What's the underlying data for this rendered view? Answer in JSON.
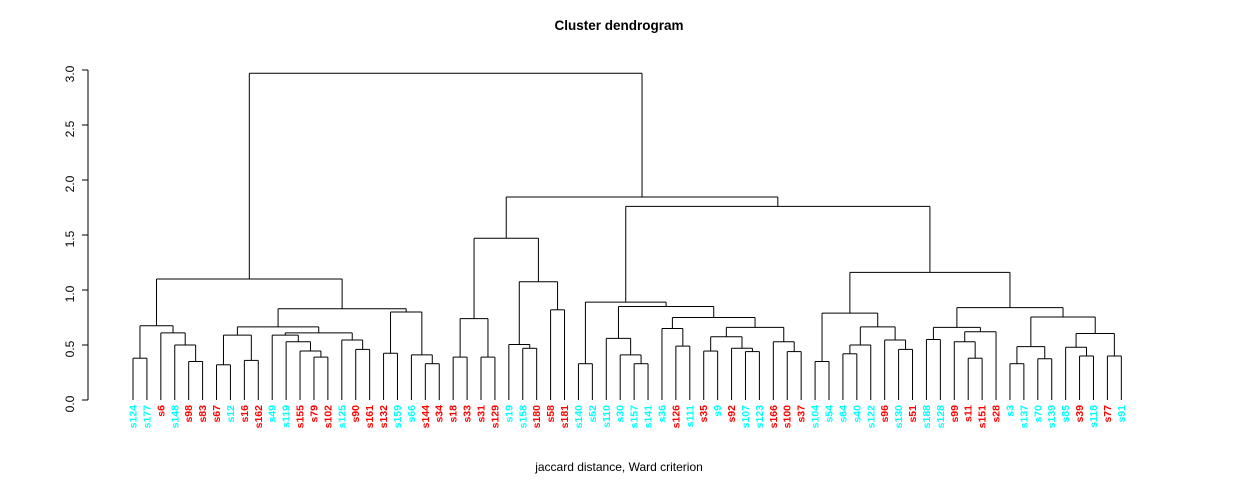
{
  "title": "Cluster dendrogram",
  "caption": "jaccard distance, Ward criterion",
  "chart_data": {
    "type": "dendrogram",
    "orientation": "vertical",
    "ylabel_ticks": [
      "0.0",
      "0.5",
      "1.0",
      "1.5",
      "2.0",
      "2.5",
      "3.0"
    ],
    "ylim": [
      0.0,
      3.0
    ],
    "root_height": 2.97,
    "colors": {
      "cyan": "#00ffff",
      "red": "#ff0000",
      "line": "#000000"
    },
    "leaves": [
      {
        "label": "s124",
        "color": "cyan"
      },
      {
        "label": "s177",
        "color": "cyan"
      },
      {
        "label": "s6",
        "color": "red"
      },
      {
        "label": "s148",
        "color": "cyan"
      },
      {
        "label": "s98",
        "color": "red"
      },
      {
        "label": "s83",
        "color": "red"
      },
      {
        "label": "s67",
        "color": "red"
      },
      {
        "label": "s12",
        "color": "cyan"
      },
      {
        "label": "s16",
        "color": "red"
      },
      {
        "label": "s162",
        "color": "red"
      },
      {
        "label": "s49",
        "color": "cyan"
      },
      {
        "label": "s119",
        "color": "cyan"
      },
      {
        "label": "s155",
        "color": "red"
      },
      {
        "label": "s79",
        "color": "red"
      },
      {
        "label": "s102",
        "color": "red"
      },
      {
        "label": "s125",
        "color": "cyan"
      },
      {
        "label": "s90",
        "color": "red"
      },
      {
        "label": "s161",
        "color": "red"
      },
      {
        "label": "s132",
        "color": "red"
      },
      {
        "label": "s159",
        "color": "cyan"
      },
      {
        "label": "s66",
        "color": "cyan"
      },
      {
        "label": "s144",
        "color": "red"
      },
      {
        "label": "s34",
        "color": "red"
      },
      {
        "label": "s18",
        "color": "red"
      },
      {
        "label": "s33",
        "color": "red"
      },
      {
        "label": "s31",
        "color": "red"
      },
      {
        "label": "s129",
        "color": "red"
      },
      {
        "label": "s19",
        "color": "cyan"
      },
      {
        "label": "s158",
        "color": "cyan"
      },
      {
        "label": "s180",
        "color": "red"
      },
      {
        "label": "s58",
        "color": "red"
      },
      {
        "label": "s181",
        "color": "red"
      },
      {
        "label": "s140",
        "color": "cyan"
      },
      {
        "label": "s52",
        "color": "cyan"
      },
      {
        "label": "s110",
        "color": "cyan"
      },
      {
        "label": "s30",
        "color": "cyan"
      },
      {
        "label": "s157",
        "color": "cyan"
      },
      {
        "label": "s141",
        "color": "cyan"
      },
      {
        "label": "s36",
        "color": "cyan"
      },
      {
        "label": "s126",
        "color": "red"
      },
      {
        "label": "s111",
        "color": "cyan"
      },
      {
        "label": "s35",
        "color": "red"
      },
      {
        "label": "s9",
        "color": "cyan"
      },
      {
        "label": "s92",
        "color": "red"
      },
      {
        "label": "s107",
        "color": "cyan"
      },
      {
        "label": "s123",
        "color": "cyan"
      },
      {
        "label": "s166",
        "color": "red"
      },
      {
        "label": "s100",
        "color": "red"
      },
      {
        "label": "s37",
        "color": "red"
      },
      {
        "label": "s104",
        "color": "cyan"
      },
      {
        "label": "s54",
        "color": "cyan"
      },
      {
        "label": "s64",
        "color": "cyan"
      },
      {
        "label": "s40",
        "color": "cyan"
      },
      {
        "label": "s122",
        "color": "cyan"
      },
      {
        "label": "s96",
        "color": "red"
      },
      {
        "label": "s130",
        "color": "cyan"
      },
      {
        "label": "s51",
        "color": "red"
      },
      {
        "label": "s188",
        "color": "cyan"
      },
      {
        "label": "s128",
        "color": "cyan"
      },
      {
        "label": "s99",
        "color": "red"
      },
      {
        "label": "s11",
        "color": "red"
      },
      {
        "label": "s151",
        "color": "red"
      },
      {
        "label": "s28",
        "color": "red"
      },
      {
        "label": "s3",
        "color": "cyan"
      },
      {
        "label": "s137",
        "color": "cyan"
      },
      {
        "label": "s70",
        "color": "cyan"
      },
      {
        "label": "s139",
        "color": "cyan"
      },
      {
        "label": "s85",
        "color": "cyan"
      },
      {
        "label": "s39",
        "color": "red"
      },
      {
        "label": "s118",
        "color": "cyan"
      },
      {
        "label": "s77",
        "color": "red"
      },
      {
        "label": "s91",
        "color": "cyan"
      }
    ],
    "tree": {
      "h": 2.97,
      "c": [
        {
          "h": 1.1,
          "c": [
            {
              "h": 0.675,
              "c": [
                {
                  "h": 0.38,
                  "c": [
                    "s124",
                    "s177"
                  ]
                },
                {
                  "h": 0.61,
                  "c": [
                    "s6",
                    {
                      "h": 0.5,
                      "c": [
                        "s148",
                        {
                          "h": 0.35,
                          "c": [
                            "s98",
                            "s83"
                          ]
                        }
                      ]
                    }
                  ]
                }
              ]
            },
            {
              "h": 0.83,
              "c": [
                {
                  "h": 0.665,
                  "c": [
                    {
                      "h": 0.59,
                      "c": [
                        {
                          "h": 0.32,
                          "c": [
                            "s67",
                            "s12"
                          ]
                        },
                        {
                          "h": 0.36,
                          "c": [
                            "s16",
                            "s162"
                          ]
                        }
                      ]
                    },
                    {
                      "h": 0.61,
                      "c": [
                        {
                          "h": 0.59,
                          "c": [
                            "s49",
                            {
                              "h": 0.53,
                              "c": [
                                "s119",
                                {
                                  "h": 0.445,
                                  "c": [
                                    "s155",
                                    {
                                      "h": 0.39,
                                      "c": [
                                        "s79",
                                        "s102"
                                      ]
                                    }
                                  ]
                                }
                              ]
                            }
                          ]
                        },
                        {
                          "h": 0.545,
                          "c": [
                            "s125",
                            {
                              "h": 0.46,
                              "c": [
                                "s90",
                                "s161"
                              ]
                            }
                          ]
                        }
                      ]
                    }
                  ]
                },
                {
                  "h": 0.8,
                  "c": [
                    {
                      "h": 0.425,
                      "c": [
                        "s132",
                        "s159"
                      ]
                    },
                    {
                      "h": 0.41,
                      "c": [
                        "s66",
                        {
                          "h": 0.33,
                          "c": [
                            "s144",
                            "s34"
                          ]
                        }
                      ]
                    }
                  ]
                }
              ]
            }
          ]
        },
        {
          "h": 1.845,
          "c": [
            {
              "h": 1.47,
              "c": [
                {
                  "h": 0.74,
                  "c": [
                    {
                      "h": 0.39,
                      "c": [
                        "s18",
                        "s33"
                      ]
                    },
                    {
                      "h": 0.39,
                      "c": [
                        "s31",
                        "s129"
                      ]
                    }
                  ]
                },
                {
                  "h": 1.075,
                  "c": [
                    {
                      "h": 0.505,
                      "c": [
                        "s19",
                        {
                          "h": 0.47,
                          "c": [
                            "s158",
                            "s180"
                          ]
                        }
                      ]
                    },
                    {
                      "h": 0.82,
                      "c": [
                        "s58",
                        "s181"
                      ]
                    }
                  ]
                }
              ]
            },
            {
              "h": 1.76,
              "c": [
                {
                  "h": 0.89,
                  "c": [
                    {
                      "h": 0.33,
                      "c": [
                        "s140",
                        "s52"
                      ]
                    },
                    {
                      "h": 0.85,
                      "c": [
                        {
                          "h": 0.56,
                          "c": [
                            "s110",
                            {
                              "h": 0.41,
                              "c": [
                                "s30",
                                {
                                  "h": 0.33,
                                  "c": [
                                    "s157",
                                    "s141"
                                  ]
                                }
                              ]
                            }
                          ]
                        },
                        {
                          "h": 0.75,
                          "c": [
                            {
                              "h": 0.65,
                              "c": [
                                "s36",
                                {
                                  "h": 0.49,
                                  "c": [
                                    "s126",
                                    "s111"
                                  ]
                                }
                              ]
                            },
                            {
                              "h": 0.66,
                              "c": [
                                {
                                  "h": 0.575,
                                  "c": [
                                    {
                                      "h": 0.445,
                                      "c": [
                                        "s35",
                                        "s9"
                                      ]
                                    },
                                    {
                                      "h": 0.47,
                                      "c": [
                                        "s92",
                                        {
                                          "h": 0.44,
                                          "c": [
                                            "s107",
                                            "s123"
                                          ]
                                        }
                                      ]
                                    }
                                  ]
                                },
                                {
                                  "h": 0.53,
                                  "c": [
                                    "s166",
                                    {
                                      "h": 0.44,
                                      "c": [
                                        "s100",
                                        "s37"
                                      ]
                                    }
                                  ]
                                }
                              ]
                            }
                          ]
                        }
                      ]
                    }
                  ]
                },
                {
                  "h": 1.16,
                  "c": [
                    {
                      "h": 0.79,
                      "c": [
                        {
                          "h": 0.35,
                          "c": [
                            "s104",
                            "s54"
                          ]
                        },
                        {
                          "h": 0.665,
                          "c": [
                            {
                              "h": 0.5,
                              "c": [
                                {
                                  "h": 0.42,
                                  "c": [
                                    "s64",
                                    "s40"
                                  ]
                                },
                                "s122"
                              ]
                            },
                            {
                              "h": 0.545,
                              "c": [
                                "s96",
                                {
                                  "h": 0.46,
                                  "c": [
                                    "s130",
                                    "s51"
                                  ]
                                }
                              ]
                            }
                          ]
                        }
                      ]
                    },
                    {
                      "h": 0.84,
                      "c": [
                        {
                          "h": 0.66,
                          "c": [
                            {
                              "h": 0.55,
                              "c": [
                                "s188",
                                "s128"
                              ]
                            },
                            {
                              "h": 0.62,
                              "c": [
                                {
                                  "h": 0.53,
                                  "c": [
                                    "s99",
                                    {
                                      "h": 0.38,
                                      "c": [
                                        "s11",
                                        "s151"
                                      ]
                                    }
                                  ]
                                },
                                "s28"
                              ]
                            }
                          ]
                        },
                        {
                          "h": 0.755,
                          "c": [
                            {
                              "h": 0.485,
                              "c": [
                                {
                                  "h": 0.33,
                                  "c": [
                                    "s3",
                                    "s137"
                                  ]
                                },
                                {
                                  "h": 0.375,
                                  "c": [
                                    "s70",
                                    "s139"
                                  ]
                                }
                              ]
                            },
                            {
                              "h": 0.605,
                              "c": [
                                {
                                  "h": 0.48,
                                  "c": [
                                    "s85",
                                    {
                                      "h": 0.4,
                                      "c": [
                                        "s39",
                                        "s118"
                                      ]
                                    }
                                  ]
                                },
                                {
                                  "h": 0.4,
                                  "c": [
                                    "s77",
                                    "s91"
                                  ]
                                }
                              ]
                            }
                          ]
                        }
                      ]
                    }
                  ]
                }
              ]
            }
          ]
        }
      ]
    }
  }
}
